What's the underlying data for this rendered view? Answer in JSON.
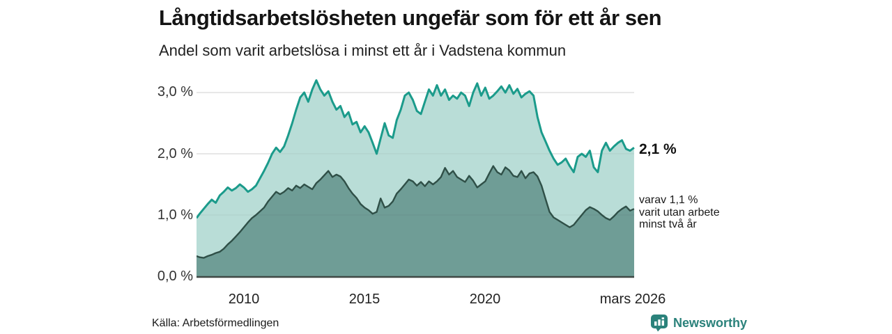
{
  "header": {
    "title": "Långtidsarbetslösheten ungefär som för ett år sen",
    "subtitle": "Andel som varit arbetslösa i minst ett år i Vadstena kommun"
  },
  "annotations": {
    "total_end_label": "2,1 %",
    "secondary_line1": "varav 1,1 %",
    "secondary_line2": "varit utan arbete",
    "secondary_line3": "minst två år"
  },
  "footer": {
    "source": "Källa: Arbetsförmedlingen",
    "logo_text": "Newsworthy"
  },
  "colors": {
    "total_line": "#1b9b8b",
    "total_fill": "#b9ddd7",
    "secondary_line": "#2f4f47",
    "secondary_fill": "#6f9d96",
    "gridline": "#dcdcdc",
    "gridline_overlay": "rgba(0,0,0,0.06)",
    "axis_line": "#404844",
    "brand": "#2b827b"
  },
  "chart_data": {
    "type": "area",
    "title": "Långtidsarbetslösheten ungefär som för ett år sen",
    "subtitle": "Andel som varit arbetslösa i minst ett år i Vadstena kommun",
    "unit": "%",
    "grid": "horizontal-only",
    "x_axis": {
      "tick_labels": [
        "2010",
        "2015",
        "2020",
        "mars 2026"
      ],
      "tick_years": [
        2010,
        2015,
        2020,
        2026.17
      ],
      "range_years": [
        2008.0,
        2026.17
      ]
    },
    "y_axis": {
      "tick_labels": [
        "3,0 %",
        "2,0 %",
        "1,0 %",
        "0,0 %"
      ],
      "tick_values": [
        3,
        2,
        1,
        0
      ],
      "ylim": [
        0,
        3.26
      ]
    },
    "series": [
      {
        "name": "Andel arbetslösa minst ett år",
        "end_value": 2.1,
        "end_label": "2,1 %",
        "start_year": 2008.0,
        "step_years": 0.166667,
        "values": [
          0.95,
          1.02,
          1.1,
          1.18,
          1.25,
          1.2,
          1.32,
          1.38,
          1.45,
          1.4,
          1.44,
          1.5,
          1.45,
          1.38,
          1.42,
          1.48,
          1.6,
          1.72,
          1.85,
          2.0,
          2.1,
          2.03,
          2.12,
          2.3,
          2.5,
          2.72,
          2.92,
          3.0,
          2.85,
          3.05,
          3.2,
          3.05,
          2.95,
          3.02,
          2.85,
          2.72,
          2.78,
          2.6,
          2.68,
          2.48,
          2.52,
          2.35,
          2.45,
          2.35,
          2.18,
          2.0,
          2.25,
          2.5,
          2.3,
          2.26,
          2.55,
          2.72,
          2.95,
          3.0,
          2.88,
          2.7,
          2.65,
          2.85,
          3.05,
          2.95,
          3.12,
          2.95,
          3.05,
          2.88,
          2.95,
          2.9,
          3.0,
          2.95,
          2.78,
          3.0,
          3.15,
          2.95,
          3.08,
          2.9,
          2.95,
          3.02,
          3.1,
          3.0,
          3.12,
          2.98,
          3.06,
          2.92,
          2.98,
          3.02,
          2.95,
          2.6,
          2.35,
          2.2,
          2.05,
          1.92,
          1.82,
          1.86,
          1.92,
          1.8,
          1.7,
          1.95,
          2.0,
          1.95,
          2.05,
          1.78,
          1.7,
          2.05,
          2.18,
          2.05,
          2.12,
          2.18,
          2.22,
          2.08,
          2.05,
          2.1
        ]
      },
      {
        "name": "varav arbetslösa minst två år",
        "end_value": 1.1,
        "end_label": "varav 1,1 % varit utan arbete minst två år",
        "start_year": 2008.0,
        "step_years": 0.166667,
        "values": [
          0.33,
          0.31,
          0.3,
          0.33,
          0.35,
          0.38,
          0.4,
          0.45,
          0.52,
          0.58,
          0.65,
          0.72,
          0.8,
          0.88,
          0.95,
          1.0,
          1.06,
          1.12,
          1.22,
          1.3,
          1.38,
          1.34,
          1.38,
          1.44,
          1.4,
          1.48,
          1.44,
          1.5,
          1.46,
          1.42,
          1.52,
          1.58,
          1.65,
          1.72,
          1.62,
          1.66,
          1.63,
          1.55,
          1.44,
          1.35,
          1.28,
          1.18,
          1.12,
          1.08,
          1.02,
          1.05,
          1.27,
          1.12,
          1.15,
          1.22,
          1.35,
          1.42,
          1.5,
          1.58,
          1.55,
          1.48,
          1.54,
          1.47,
          1.55,
          1.5,
          1.55,
          1.62,
          1.77,
          1.66,
          1.72,
          1.62,
          1.58,
          1.54,
          1.64,
          1.56,
          1.45,
          1.5,
          1.55,
          1.68,
          1.8,
          1.7,
          1.66,
          1.78,
          1.73,
          1.64,
          1.62,
          1.72,
          1.6,
          1.68,
          1.7,
          1.63,
          1.48,
          1.26,
          1.05,
          0.96,
          0.92,
          0.88,
          0.84,
          0.8,
          0.84,
          0.92,
          1.0,
          1.08,
          1.13,
          1.1,
          1.06,
          1.0,
          0.95,
          0.92,
          0.98,
          1.05,
          1.1,
          1.14,
          1.07,
          1.1
        ]
      }
    ],
    "legend": "none"
  }
}
